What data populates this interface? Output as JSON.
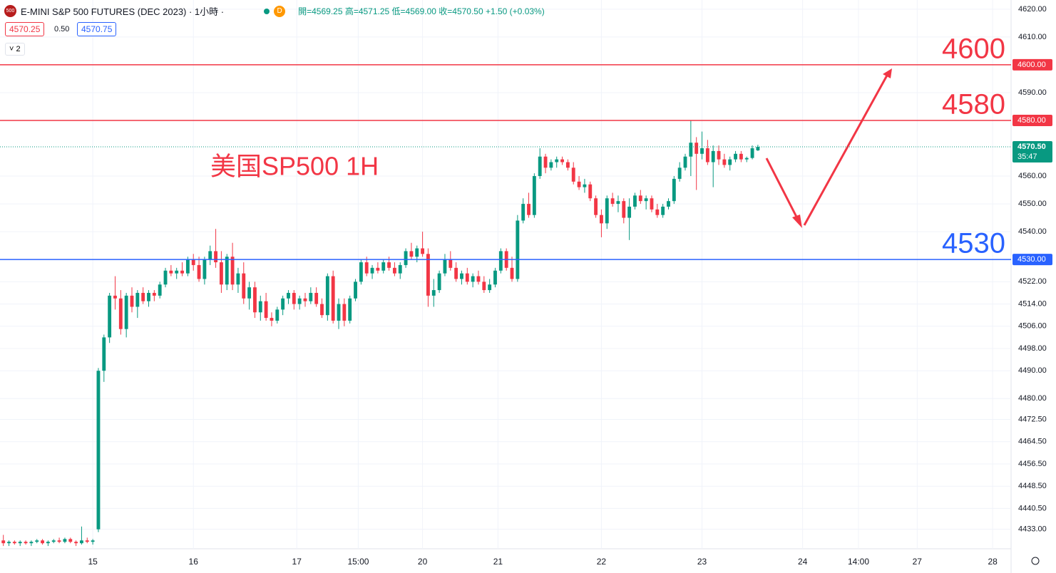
{
  "header": {
    "logo": "500",
    "symbol": "E-MINI S&P 500 FUTURES (DEC 2023) · 1小時 ·",
    "source": "D",
    "ohlc": "開=4569.25 高=4571.25 低=4569.00 收=4570.50 +1.50 (+0.03%)",
    "bid": "4570.25",
    "spread": "0.50",
    "ask": "4570.75",
    "indicators": "2"
  },
  "chart_data": {
    "type": "candlestick",
    "annotation": "美国SP500 1H",
    "up_color": "#089981",
    "down_color": "#f23645",
    "ylim": [
      4426,
      4623.3
    ],
    "xlim": [
      -0.6,
      180.3
    ],
    "yticks": [
      {
        "value": 4620,
        "label": "4620.00"
      },
      {
        "value": 4610,
        "label": "4610.00"
      },
      {
        "value": 4590,
        "label": "4590.00"
      },
      {
        "value": 4560,
        "label": "4560.00"
      },
      {
        "value": 4550,
        "label": "4550.00"
      },
      {
        "value": 4540,
        "label": "4540.00"
      },
      {
        "value": 4522,
        "label": "4522.00"
      },
      {
        "value": 4514,
        "label": "4514.00"
      },
      {
        "value": 4506,
        "label": "4506.00"
      },
      {
        "value": 4498,
        "label": "4498.00"
      },
      {
        "value": 4490,
        "label": "4490.00"
      },
      {
        "value": 4480,
        "label": "4480.00"
      },
      {
        "value": 4472.5,
        "label": "4472.50"
      },
      {
        "value": 4464.5,
        "label": "4464.50"
      },
      {
        "value": 4456.5,
        "label": "4456.50"
      },
      {
        "value": 4448.5,
        "label": "4448.50"
      },
      {
        "value": 4440.5,
        "label": "4440.50"
      },
      {
        "value": 4433,
        "label": "4433.00"
      }
    ],
    "xticks": [
      {
        "value": 16,
        "label": "15"
      },
      {
        "value": 34,
        "label": "16"
      },
      {
        "value": 52.5,
        "label": "17"
      },
      {
        "value": 63.5,
        "label": "15:00"
      },
      {
        "value": 75,
        "label": "20"
      },
      {
        "value": 88.5,
        "label": "21"
      },
      {
        "value": 107,
        "label": "22"
      },
      {
        "value": 125,
        "label": "23"
      },
      {
        "value": 143,
        "label": "24"
      },
      {
        "value": 153,
        "label": "14:00"
      },
      {
        "value": 163.5,
        "label": "27"
      },
      {
        "value": 177,
        "label": "28"
      }
    ],
    "levels": [
      {
        "value": 4600,
        "label": "4600.00",
        "color": "#f23645"
      },
      {
        "value": 4580,
        "label": "4580.00",
        "color": "#f23645"
      },
      {
        "value": 4530,
        "label": "4530.00",
        "color": "#2962ff"
      }
    ],
    "last_price": {
      "value": 4570.5,
      "label": "4570.50",
      "countdown": "35:47",
      "color": "#089981"
    },
    "candles": [
      [
        4429,
        4431,
        4427,
        4428
      ],
      [
        4428,
        4429,
        4427,
        4428.5
      ],
      [
        4428.5,
        4429,
        4427.5,
        4428
      ],
      [
        4428,
        4429,
        4427,
        4428.5
      ],
      [
        4428.5,
        4429,
        4427.5,
        4428
      ],
      [
        4428,
        4429,
        4427,
        4428.5
      ],
      [
        4428.5,
        4429.5,
        4428,
        4429
      ],
      [
        4429,
        4429.5,
        4427.5,
        4428
      ],
      [
        4428,
        4429,
        4427,
        4428.5
      ],
      [
        4428.5,
        4429.5,
        4428,
        4429
      ],
      [
        4429,
        4430,
        4428,
        4428.5
      ],
      [
        4428.5,
        4430,
        4428,
        4429.5
      ],
      [
        4429.5,
        4430,
        4428,
        4428.5
      ],
      [
        4428.5,
        4429,
        4427,
        4428
      ],
      [
        4428,
        4434,
        4427.5,
        4429
      ],
      [
        4429,
        4430,
        4428,
        4428.5
      ],
      [
        4428.5,
        4429.5,
        4427.5,
        4429
      ],
      [
        4433,
        4491,
        4432,
        4490
      ],
      [
        4490,
        4503,
        4486,
        4502
      ],
      [
        4502,
        4518,
        4500,
        4517
      ],
      [
        4517,
        4524,
        4512,
        4516
      ],
      [
        4516,
        4519,
        4503,
        4505
      ],
      [
        4505,
        4518,
        4502,
        4517
      ],
      [
        4517,
        4520,
        4511,
        4513
      ],
      [
        4513,
        4519,
        4509,
        4518
      ],
      [
        4518,
        4520,
        4514,
        4515
      ],
      [
        4515,
        4519,
        4513,
        4518
      ],
      [
        4518,
        4519,
        4515,
        4517
      ],
      [
        4517,
        4522,
        4516,
        4521
      ],
      [
        4521,
        4527,
        4520,
        4526
      ],
      [
        4526,
        4528,
        4524,
        4525
      ],
      [
        4525,
        4527,
        4523,
        4526
      ],
      [
        4526,
        4529,
        4524,
        4525
      ],
      [
        4525,
        4531,
        4524,
        4530
      ],
      [
        4530,
        4532,
        4526,
        4528
      ],
      [
        4528,
        4531,
        4522,
        4523
      ],
      [
        4523,
        4531,
        4521,
        4530
      ],
      [
        4530,
        4535,
        4528,
        4533
      ],
      [
        4533,
        4541,
        4527,
        4529
      ],
      [
        4529,
        4533,
        4518,
        4521
      ],
      [
        4521,
        4532,
        4519,
        4531
      ],
      [
        4531,
        4536,
        4519,
        4521
      ],
      [
        4521,
        4527,
        4518,
        4525
      ],
      [
        4525,
        4529,
        4514,
        4516
      ],
      [
        4516,
        4522,
        4512,
        4520
      ],
      [
        4520,
        4522,
        4509,
        4511
      ],
      [
        4511,
        4517,
        4508,
        4515
      ],
      [
        4515,
        4518,
        4508,
        4509
      ],
      [
        4509,
        4511,
        4506,
        4508
      ],
      [
        4508,
        4513,
        4507,
        4512
      ],
      [
        4512,
        4517,
        4510,
        4516
      ],
      [
        4516,
        4519,
        4514,
        4518
      ],
      [
        4518,
        4519,
        4512,
        4514
      ],
      [
        4514,
        4517,
        4512,
        4516
      ],
      [
        4516,
        4518,
        4513,
        4515
      ],
      [
        4515,
        4520,
        4514,
        4518
      ],
      [
        4518,
        4520,
        4513,
        4514
      ],
      [
        4514,
        4516,
        4509,
        4510
      ],
      [
        4510,
        4525,
        4508,
        4524
      ],
      [
        4524,
        4526,
        4507,
        4508
      ],
      [
        4508,
        4516,
        4505,
        4514
      ],
      [
        4514,
        4516,
        4506,
        4508
      ],
      [
        4508,
        4517,
        4507,
        4516
      ],
      [
        4516,
        4523,
        4515,
        4522
      ],
      [
        4522,
        4530,
        4521,
        4529
      ],
      [
        4529,
        4531,
        4524,
        4525
      ],
      [
        4525,
        4528,
        4523,
        4527
      ],
      [
        4527,
        4529,
        4525,
        4526
      ],
      [
        4526,
        4530,
        4525,
        4529
      ],
      [
        4529,
        4531,
        4526,
        4527
      ],
      [
        4527,
        4529,
        4524,
        4525
      ],
      [
        4525,
        4529,
        4523,
        4528
      ],
      [
        4528,
        4534,
        4527,
        4533
      ],
      [
        4533,
        4536,
        4530,
        4531
      ],
      [
        4531,
        4535,
        4529,
        4534
      ],
      [
        4534,
        4540,
        4531,
        4532
      ],
      [
        4532,
        4534,
        4513,
        4517
      ],
      [
        4517,
        4523,
        4513,
        4519
      ],
      [
        4519,
        4526,
        4518,
        4525
      ],
      [
        4525,
        4532,
        4524,
        4530
      ],
      [
        4530,
        4533,
        4526,
        4527
      ],
      [
        4527,
        4529,
        4522,
        4523
      ],
      [
        4523,
        4526,
        4521,
        4525
      ],
      [
        4525,
        4527,
        4521,
        4522
      ],
      [
        4522,
        4525,
        4520,
        4524
      ],
      [
        4524,
        4526,
        4521,
        4522
      ],
      [
        4522,
        4524,
        4518,
        4519
      ],
      [
        4519,
        4523,
        4518,
        4521
      ],
      [
        4521,
        4527,
        4520,
        4526
      ],
      [
        4526,
        4534,
        4525,
        4533
      ],
      [
        4533,
        4534,
        4526,
        4527
      ],
      [
        4527,
        4531,
        4522,
        4523
      ],
      [
        4523,
        4546,
        4522,
        4544
      ],
      [
        4544,
        4552,
        4543,
        4550
      ],
      [
        4550,
        4554,
        4545,
        4546
      ],
      [
        4546,
        4561,
        4545,
        4560
      ],
      [
        4560,
        4570,
        4559,
        4567
      ],
      [
        4567,
        4568,
        4561,
        4563
      ],
      [
        4563,
        4566,
        4562,
        4565
      ],
      [
        4565,
        4567,
        4563,
        4566
      ],
      [
        4566,
        4567,
        4564,
        4565
      ],
      [
        4565,
        4566,
        4562,
        4563
      ],
      [
        4563,
        4565,
        4557,
        4558
      ],
      [
        4558,
        4560,
        4555,
        4556
      ],
      [
        4556,
        4559,
        4554,
        4557
      ],
      [
        4557,
        4558,
        4551,
        4552
      ],
      [
        4552,
        4553,
        4545,
        4546
      ],
      [
        4546,
        4548,
        4538,
        4543
      ],
      [
        4543,
        4553,
        4541,
        4552
      ],
      [
        4552,
        4554,
        4549,
        4550
      ],
      [
        4550,
        4553,
        4547,
        4551
      ],
      [
        4551,
        4552,
        4543,
        4545
      ],
      [
        4545,
        4552,
        4537,
        4549
      ],
      [
        4549,
        4554,
        4548,
        4553
      ],
      [
        4553,
        4555,
        4550,
        4551
      ],
      [
        4551,
        4553,
        4548,
        4552
      ],
      [
        4552,
        4553,
        4547,
        4548
      ],
      [
        4548,
        4550,
        4545,
        4546
      ],
      [
        4546,
        4550,
        4545,
        4549
      ],
      [
        4549,
        4552,
        4548,
        4551
      ],
      [
        4551,
        4560,
        4550,
        4559
      ],
      [
        4559,
        4565,
        4558,
        4563
      ],
      [
        4563,
        4568,
        4562,
        4567
      ],
      [
        4567,
        4580,
        4560,
        4572
      ],
      [
        4572,
        4574,
        4555,
        4568
      ],
      [
        4568,
        4576,
        4566,
        4570
      ],
      [
        4570,
        4573,
        4564,
        4565
      ],
      [
        4565,
        4571,
        4556,
        4569
      ],
      [
        4569,
        4571,
        4564,
        4566
      ],
      [
        4566,
        4568,
        4563,
        4564
      ],
      [
        4564,
        4567,
        4562,
        4566
      ],
      [
        4566,
        4569,
        4565,
        4568
      ],
      [
        4568,
        4569,
        4565,
        4566
      ],
      [
        4566,
        4567,
        4565,
        4566.5
      ],
      [
        4566.5,
        4571,
        4566,
        4570
      ],
      [
        4569.25,
        4571.25,
        4569,
        4570.5
      ]
    ]
  }
}
